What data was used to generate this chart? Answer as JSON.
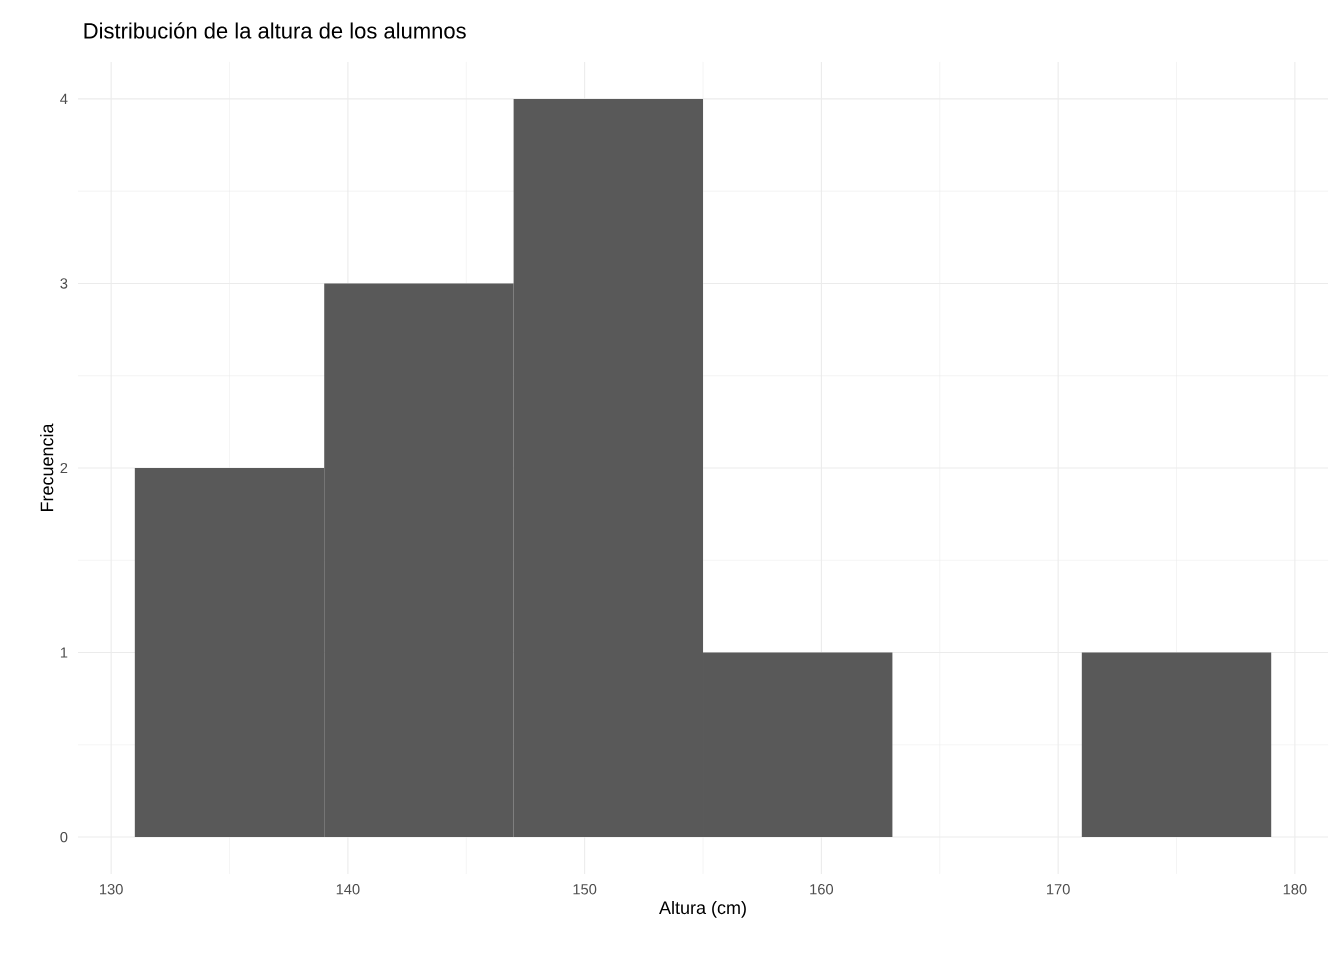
{
  "chart_data": {
    "type": "histogram",
    "title": "Distribución de la altura de los alumnos",
    "xlabel": "Altura (cm)",
    "ylabel": "Frecuencia",
    "bins": [
      131,
      139,
      147,
      155,
      163,
      171,
      179
    ],
    "values": [
      2,
      3,
      4,
      1,
      0,
      1
    ],
    "color": "#595959",
    "xlim": [
      128.6,
      181.4
    ],
    "ylim": [
      -0.2,
      4.2
    ],
    "xticks": [
      130,
      140,
      150,
      160,
      170,
      180
    ],
    "yticks": [
      0,
      1,
      2,
      3,
      4
    ],
    "grid": true
  }
}
